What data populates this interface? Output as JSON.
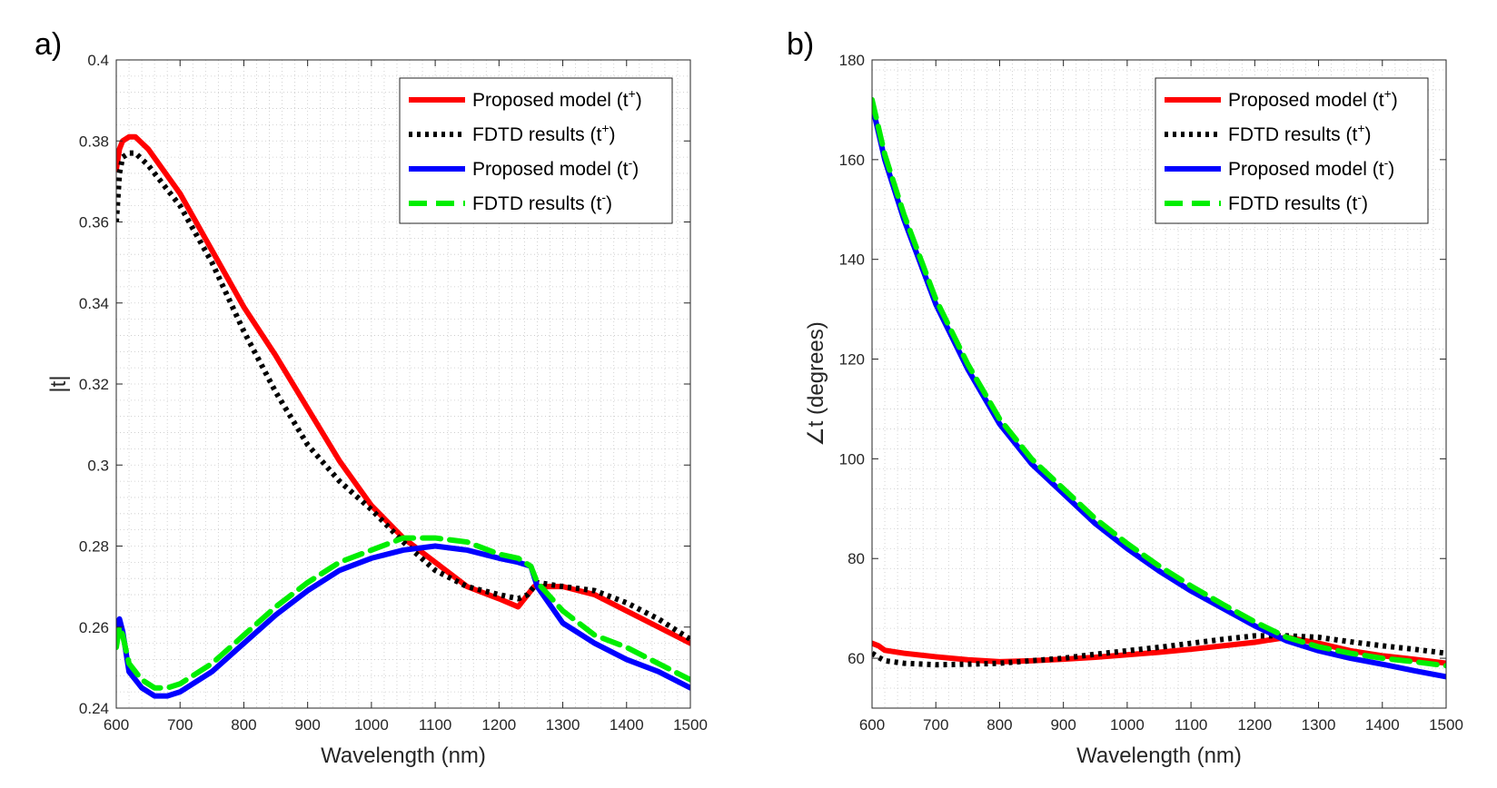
{
  "chart_data": [
    {
      "type": "line",
      "panel_label": "a)",
      "xlabel": "Wavelength (nm)",
      "ylabel": "|t|",
      "xlim": [
        600,
        1500
      ],
      "ylim": [
        0.24,
        0.4
      ],
      "xticks": [
        600,
        700,
        800,
        900,
        1000,
        1100,
        1200,
        1300,
        1400,
        1500
      ],
      "xtick_labels": [
        "600",
        "700",
        "800",
        "900",
        "1000",
        "1100",
        "1200",
        "1300",
        "1400",
        "1500"
      ],
      "yticks": [
        0.24,
        0.26,
        0.28,
        0.3,
        0.32,
        0.34,
        0.36,
        0.38,
        0.4
      ],
      "ytick_labels": [
        "0.24",
        "0.26",
        "0.28",
        "0.3",
        "0.32",
        "0.34",
        "0.36",
        "0.38",
        "0.4"
      ],
      "grid": true,
      "legend_position": "top-right",
      "series": [
        {
          "name": "Proposed model (t+)",
          "label_main": "Proposed model (t",
          "label_sup": "+",
          "label_end": ")",
          "color": "#ff0000",
          "style": "solid",
          "x": [
            600,
            605,
            610,
            620,
            630,
            650,
            700,
            750,
            800,
            850,
            900,
            950,
            1000,
            1050,
            1100,
            1150,
            1200,
            1230,
            1245,
            1255,
            1300,
            1350,
            1400,
            1450,
            1500
          ],
          "y": [
            0.373,
            0.378,
            0.38,
            0.381,
            0.381,
            0.378,
            0.367,
            0.353,
            0.339,
            0.327,
            0.314,
            0.301,
            0.29,
            0.282,
            0.276,
            0.27,
            0.267,
            0.265,
            0.268,
            0.27,
            0.27,
            0.268,
            0.264,
            0.26,
            0.256
          ]
        },
        {
          "name": "FDTD results (t+)",
          "label_main": "FDTD results (t",
          "label_sup": "+",
          "label_end": ")",
          "color": "#000000",
          "style": "dotted",
          "x": [
            600,
            605,
            610,
            620,
            630,
            650,
            700,
            750,
            800,
            850,
            900,
            950,
            1000,
            1050,
            1100,
            1150,
            1200,
            1230,
            1245,
            1260,
            1300,
            1350,
            1400,
            1450,
            1500
          ],
          "y": [
            0.36,
            0.372,
            0.376,
            0.377,
            0.377,
            0.374,
            0.364,
            0.35,
            0.333,
            0.318,
            0.305,
            0.296,
            0.289,
            0.281,
            0.274,
            0.27,
            0.268,
            0.267,
            0.268,
            0.271,
            0.27,
            0.269,
            0.266,
            0.262,
            0.257
          ]
        },
        {
          "name": "Proposed model (t-)",
          "label_main": "Proposed model (t",
          "label_sup": "-",
          "label_end": ")",
          "color": "#0000ff",
          "style": "solid",
          "x": [
            600,
            605,
            610,
            620,
            640,
            660,
            680,
            700,
            750,
            800,
            850,
            900,
            950,
            1000,
            1050,
            1100,
            1150,
            1200,
            1230,
            1250,
            1260,
            1300,
            1350,
            1400,
            1450,
            1500
          ],
          "y": [
            0.26,
            0.262,
            0.259,
            0.249,
            0.245,
            0.243,
            0.243,
            0.244,
            0.249,
            0.256,
            0.263,
            0.269,
            0.274,
            0.277,
            0.279,
            0.28,
            0.279,
            0.277,
            0.276,
            0.275,
            0.27,
            0.261,
            0.256,
            0.252,
            0.249,
            0.245
          ]
        },
        {
          "name": "FDTD results (t-)",
          "label_main": "FDTD results (t",
          "label_sup": "-",
          "label_end": ")",
          "color": "#00ee00",
          "style": "dashed",
          "x": [
            600,
            605,
            610,
            620,
            640,
            660,
            680,
            700,
            750,
            800,
            850,
            900,
            950,
            1000,
            1050,
            1100,
            1150,
            1200,
            1230,
            1250,
            1260,
            1300,
            1350,
            1400,
            1450,
            1500
          ],
          "y": [
            0.255,
            0.26,
            0.258,
            0.251,
            0.247,
            0.245,
            0.245,
            0.246,
            0.251,
            0.258,
            0.265,
            0.271,
            0.276,
            0.279,
            0.282,
            0.282,
            0.281,
            0.278,
            0.277,
            0.275,
            0.271,
            0.264,
            0.258,
            0.255,
            0.251,
            0.247
          ]
        }
      ]
    },
    {
      "type": "line",
      "panel_label": "b)",
      "xlabel": "Wavelength (nm)",
      "ylabel": "∠t (degrees)",
      "xlim": [
        600,
        1500
      ],
      "ylim": [
        50,
        180
      ],
      "xticks": [
        600,
        700,
        800,
        900,
        1000,
        1100,
        1200,
        1300,
        1400,
        1500
      ],
      "xtick_labels": [
        "600",
        "700",
        "800",
        "900",
        "1000",
        "1100",
        "1200",
        "1300",
        "1400",
        "1500"
      ],
      "yticks": [
        60,
        80,
        100,
        120,
        140,
        160,
        180
      ],
      "ytick_labels": [
        "60",
        "80",
        "100",
        "120",
        "140",
        "160",
        "180"
      ],
      "grid": true,
      "legend_position": "top-right",
      "series": [
        {
          "name": "Proposed model (t+)",
          "label_main": "Proposed model (t",
          "label_sup": "+",
          "label_end": ")",
          "color": "#ff0000",
          "style": "solid",
          "x": [
            600,
            610,
            620,
            650,
            700,
            750,
            800,
            850,
            900,
            950,
            1000,
            1050,
            1100,
            1150,
            1200,
            1250,
            1300,
            1350,
            1400,
            1450,
            1500
          ],
          "y": [
            63,
            62.5,
            61.6,
            61.0,
            60.3,
            59.7,
            59.3,
            59.5,
            59.8,
            60.2,
            60.7,
            61.2,
            61.8,
            62.5,
            63.2,
            64.2,
            63.0,
            61.5,
            60.5,
            59.8,
            59.0
          ]
        },
        {
          "name": "FDTD results (t+)",
          "label_main": "FDTD results (t",
          "label_sup": "+",
          "label_end": ")",
          "color": "#000000",
          "style": "dotted",
          "x": [
            600,
            610,
            620,
            650,
            700,
            750,
            800,
            850,
            900,
            950,
            1000,
            1050,
            1100,
            1150,
            1200,
            1250,
            1300,
            1350,
            1400,
            1450,
            1500
          ],
          "y": [
            61,
            60.2,
            59.5,
            59.0,
            58.7,
            58.8,
            59.0,
            59.5,
            60.0,
            60.8,
            61.5,
            62.2,
            63.0,
            63.8,
            64.5,
            64.5,
            64.2,
            63.3,
            62.5,
            61.8,
            61.0
          ]
        },
        {
          "name": "Proposed model (t-)",
          "label_main": "Proposed model (t",
          "label_sup": "-",
          "label_end": ")",
          "color": "#0000ff",
          "style": "solid",
          "x": [
            600,
            620,
            650,
            700,
            750,
            800,
            850,
            900,
            950,
            1000,
            1050,
            1100,
            1150,
            1200,
            1250,
            1300,
            1350,
            1400,
            1450,
            1500
          ],
          "y": [
            171,
            160,
            148,
            131,
            118,
            107,
            99,
            93,
            87,
            82,
            77.5,
            73.5,
            70,
            66.5,
            63.5,
            61.5,
            60,
            58.8,
            57.5,
            56.3
          ]
        },
        {
          "name": "FDTD results (t-)",
          "label_main": "FDTD results (t",
          "label_sup": "-",
          "label_end": ")",
          "color": "#00ee00",
          "style": "dashed",
          "x": [
            600,
            620,
            650,
            700,
            750,
            800,
            850,
            900,
            950,
            1000,
            1050,
            1100,
            1150,
            1200,
            1250,
            1300,
            1350,
            1400,
            1450,
            1500
          ],
          "y": [
            172,
            161,
            149,
            132,
            119,
            108,
            100,
            94,
            88,
            83,
            78.5,
            74.5,
            70.8,
            67.3,
            64.2,
            62.3,
            61,
            60,
            59.3,
            58.5
          ]
        }
      ]
    }
  ]
}
